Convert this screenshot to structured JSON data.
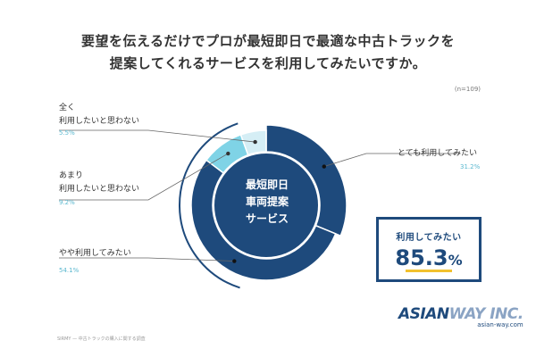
{
  "title": {
    "line1": "要望を伝えるだけでプロが最短即日で最適な中古トラックを",
    "line2": "提案してくれるサービスを利用してみたいですか。"
  },
  "n_label": "(n=109)",
  "center_text": {
    "line1": "最短即日",
    "line2": "車両提案",
    "line3": "サービス"
  },
  "summary": {
    "label": "利用してみたい",
    "number": "85.3",
    "unit": "%"
  },
  "source_note": "SIRMY — 中古トラックの購入に関する調査",
  "logo": {
    "main_dark": "ASIAN",
    "main_light": "WAY INC.",
    "sub": "asian-way.com"
  },
  "colors": {
    "dark_navy": "#1e4a7c",
    "light_cyan": "#7fd3e6",
    "pale_cyan": "#d5eef5",
    "label_blue": "#5bb8cf",
    "accent_yellow": "#f2c12e"
  },
  "chart_data": {
    "type": "pie",
    "donut": true,
    "n": 109,
    "slices": [
      {
        "label": "とても利用してみたい",
        "value": 31.2,
        "pct_label": "31.2%",
        "color": "#1e4a7c",
        "emphasized": true
      },
      {
        "label": "やや利用してみたい",
        "value": 54.1,
        "pct_label": "54.1%",
        "color": "#1e4a7c",
        "emphasized": false
      },
      {
        "label_lines": [
          "あまり",
          "利用したいと思わない"
        ],
        "value": 9.2,
        "pct_label": "9.2%",
        "color": "#7fd3e6",
        "emphasized": false
      },
      {
        "label_lines": [
          "全く",
          "利用したいと思わない"
        ],
        "value": 5.5,
        "pct_label": "5.5%",
        "color": "#d5eef5",
        "emphasized": false
      }
    ]
  }
}
